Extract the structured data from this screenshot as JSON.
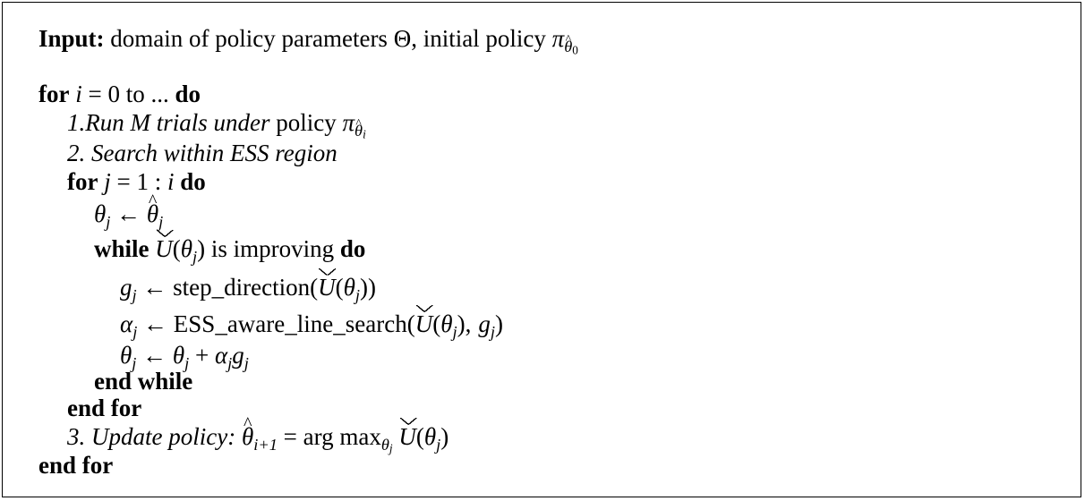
{
  "algorithm": {
    "input_label": "Input:",
    "input_text_1": "domain of policy parameters Θ, initial policy",
    "pi": "π",
    "theta": "θ",
    "zero": "0",
    "for_kw": "for",
    "i": "i",
    "j": "j",
    "eq": "=",
    "outer_range": "0 to ...",
    "do_kw": "do",
    "step1_text": "1.Run",
    "M": "M",
    "step1_text2": "trials under",
    "policy_word": "policy",
    "step2_text": "2. Search within ESS region",
    "inner_range_1": "1 :",
    "arrow": "←",
    "while_kw": "while",
    "U": "U",
    "lparen": "(",
    "rparen": ")",
    "is_improving": "is improving",
    "g": "g",
    "step_direction": "step_direction",
    "alpha": "α",
    "ess_line_search": "ESS_aware_line_search",
    "comma": ",",
    "plus": "+",
    "end_while": "end while",
    "end_for": "end for",
    "step3_text": "3. Update policy:",
    "i_plus_1": "i+1",
    "argmax": "arg max"
  }
}
